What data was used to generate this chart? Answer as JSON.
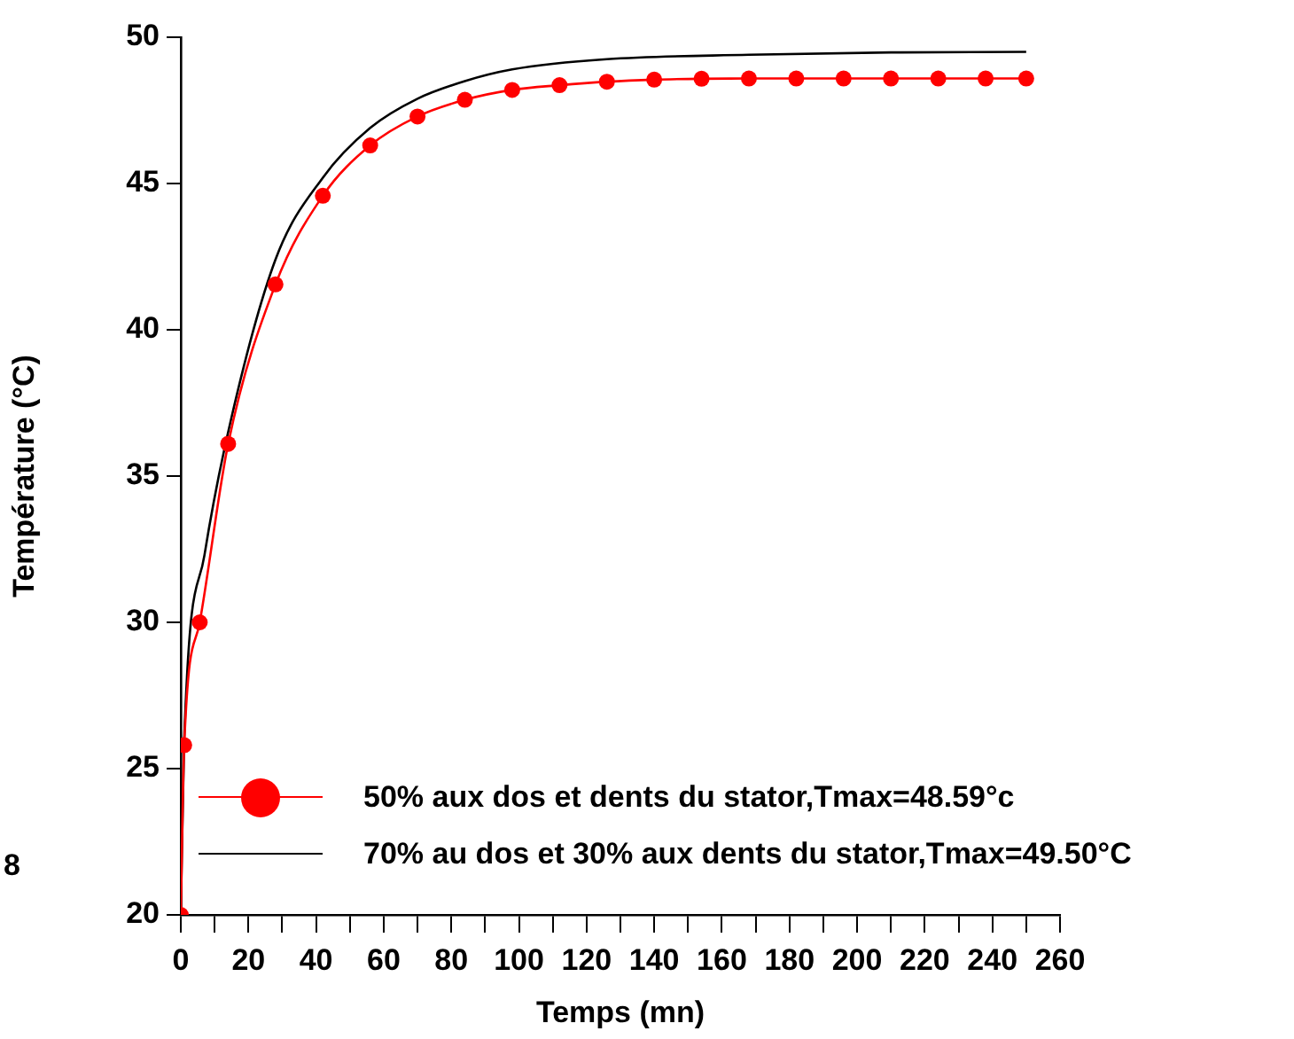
{
  "chart_data": {
    "type": "line",
    "xlabel": "Temps (mn)",
    "ylabel": "Température (°C)",
    "xlim": [
      0,
      260
    ],
    "ylim": [
      20,
      50
    ],
    "xticks": [
      0,
      {
        "value": 10,
        "label": null
      },
      20,
      {
        "value": 30,
        "label": null
      },
      40,
      {
        "value": 50,
        "label": null
      },
      60,
      {
        "value": 70,
        "label": null
      },
      80,
      {
        "value": 90,
        "label": null
      },
      100,
      {
        "value": 110,
        "label": null
      },
      120,
      {
        "value": 130,
        "label": null
      },
      140,
      {
        "value": 150,
        "label": null
      },
      160,
      {
        "value": 170,
        "label": null
      },
      180,
      {
        "value": 190,
        "label": null
      },
      200,
      {
        "value": 210,
        "label": null
      },
      220,
      {
        "value": 230,
        "label": null
      },
      240,
      {
        "value": 250,
        "label": null
      },
      260
    ],
    "yticks": [
      20,
      25,
      30,
      35,
      40,
      45,
      50
    ],
    "legend": "bottom",
    "series": [
      {
        "name": "50% aux dos et dents du stator,Tmax=48.59°c",
        "color": "#ff0000",
        "marker": "circle",
        "x": [
          0,
          1,
          5.6,
          14,
          28,
          42,
          56,
          70,
          84,
          98,
          112,
          126,
          140,
          154,
          168,
          182,
          196,
          210,
          224,
          238,
          250
        ],
        "values": [
          20,
          25.8,
          30,
          36.1,
          41.55,
          44.58,
          46.3,
          47.29,
          47.86,
          48.2,
          48.36,
          48.48,
          48.55,
          48.58,
          48.59,
          48.59,
          48.59,
          48.59,
          48.59,
          48.59,
          48.59
        ]
      },
      {
        "name": "70% au dos et 30% aux dents du stator,Tmax=49.50°C",
        "color": "#000000",
        "marker": "none",
        "x": [
          0,
          1,
          7,
          14,
          28,
          42,
          56,
          70,
          84,
          98,
          126,
          168,
          210,
          250
        ],
        "values": [
          20,
          26,
          32.3,
          36.5,
          42.4,
          45.2,
          46.9,
          47.9,
          48.5,
          48.9,
          49.25,
          49.4,
          49.48,
          49.5
        ]
      }
    ],
    "annotations": [
      "8"
    ]
  }
}
